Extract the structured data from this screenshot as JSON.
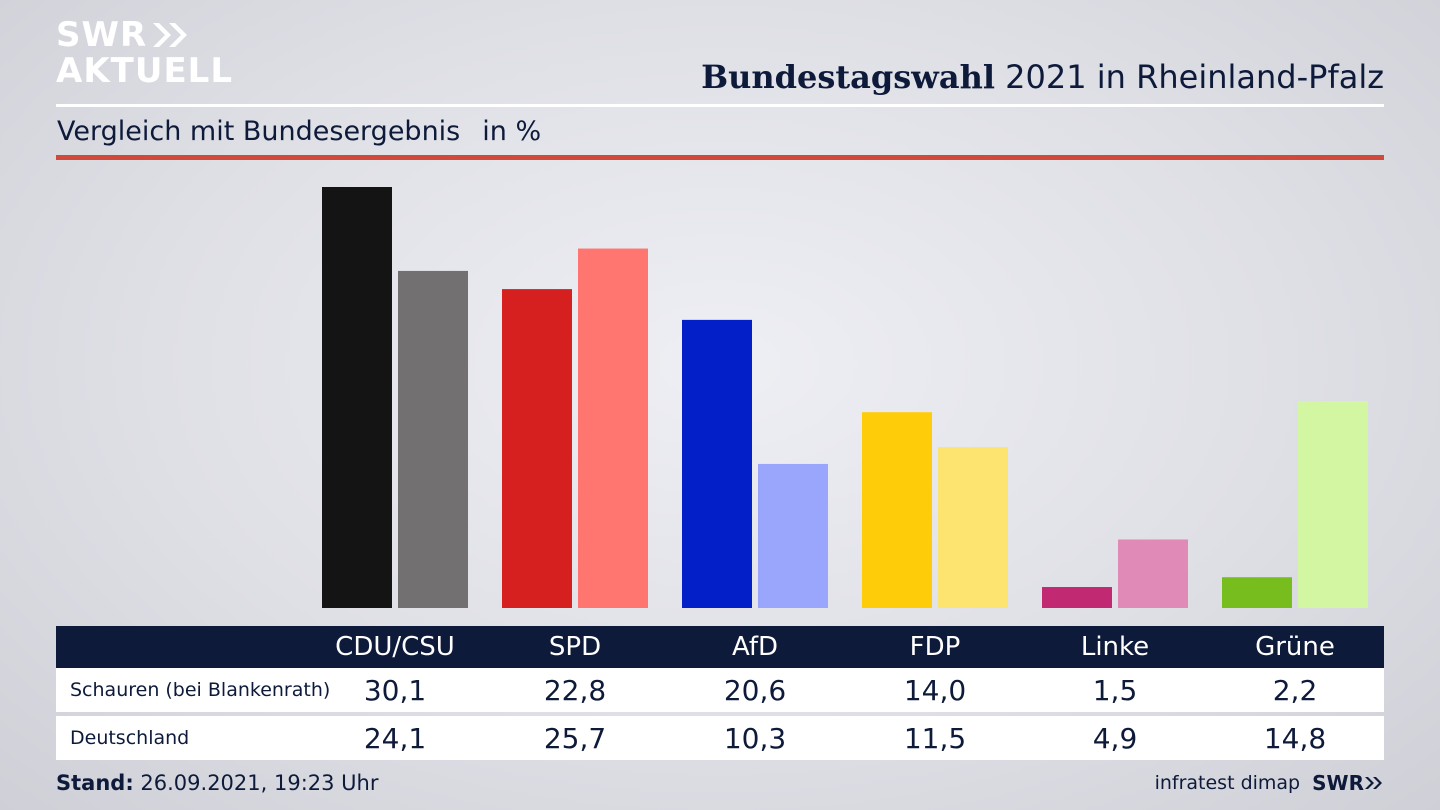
{
  "header": {
    "logo_line1": "SWR",
    "logo_line2": "AKTUELL",
    "title_bold": "Bundestagswahl",
    "title_rest": " 2021 in Rheinland-Pfalz",
    "subtitle": "Vergleich mit Bundesergebnis",
    "unit": "in %"
  },
  "colors": {
    "accent_rule": "#d0493a",
    "navy": "#0d1a3a"
  },
  "chart_data": {
    "type": "bar",
    "categories": [
      "CDU/CSU",
      "SPD",
      "AfD",
      "FDP",
      "Linke",
      "Grüne"
    ],
    "series": [
      {
        "name": "Schauren (bei Blankenrath)",
        "values": [
          30.1,
          22.8,
          20.6,
          14.0,
          1.5,
          2.2
        ],
        "colors": [
          "#141414",
          "#d61f1f",
          "#0320c8",
          "#ffcc0a",
          "#c12a73",
          "#76bd1d"
        ]
      },
      {
        "name": "Deutschland",
        "values": [
          24.1,
          25.7,
          10.3,
          11.5,
          4.9,
          14.8
        ],
        "colors": [
          "#727070",
          "#ff7670",
          "#9aa6fb",
          "#fde36f",
          "#e08ab8",
          "#d3f6a3"
        ]
      }
    ],
    "value_labels": [
      [
        "30,1",
        "22,8",
        "20,6",
        "14,0",
        "1,5",
        "2,2"
      ],
      [
        "24,1",
        "25,7",
        "10,3",
        "11,5",
        "4,9",
        "14,8"
      ]
    ],
    "ylim": [
      0,
      30.1
    ],
    "grid": false,
    "legend": "table-below"
  },
  "footer": {
    "stand_label": "Stand:",
    "stand_value": " 26.09.2021, 19:23 Uhr",
    "source": "infratest dimap",
    "brand": "SWR"
  }
}
